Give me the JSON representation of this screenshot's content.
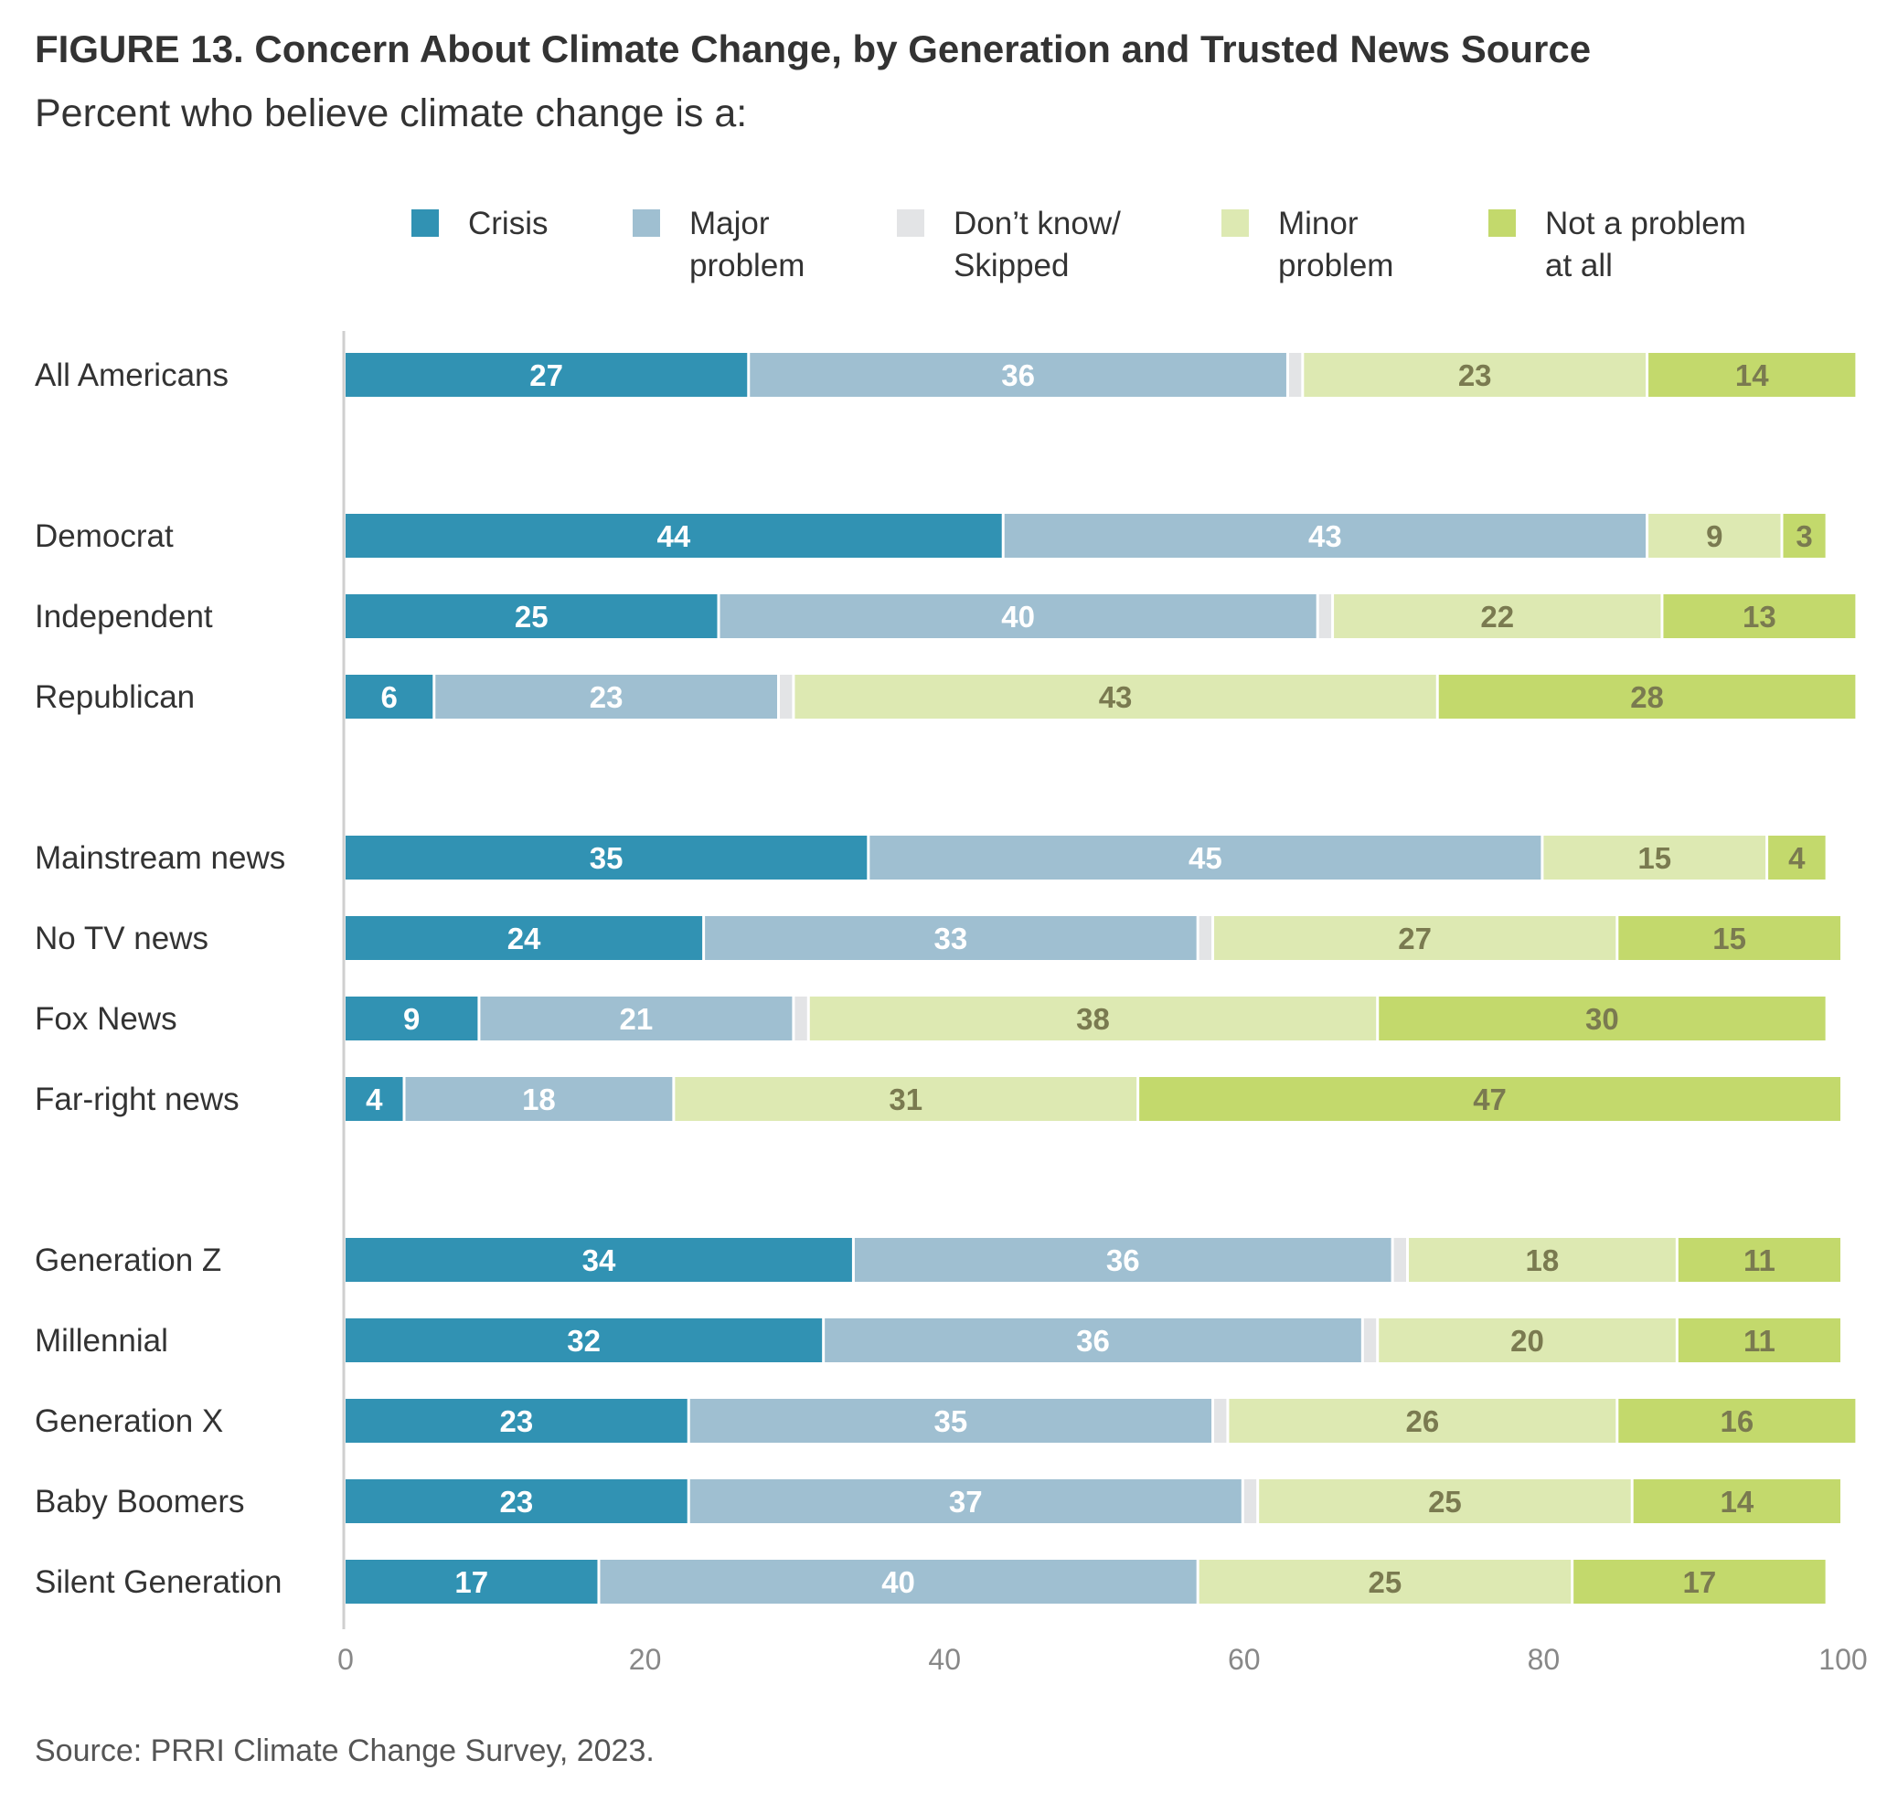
{
  "figure_title": "FIGURE 13.  Concern About Climate Change, by Generation and Trusted News Source",
  "subtitle": "Percent who believe climate change is a:",
  "source": "Source: PRRI Climate Change Survey, 2023.",
  "chart_data": {
    "type": "bar",
    "orientation": "horizontal",
    "stacked": true,
    "title": "FIGURE 13.  Concern About Climate Change, by Generation and Trusted News Source",
    "subtitle": "Percent who believe climate change is a:",
    "xlim": [
      0,
      100
    ],
    "xticks": [
      0,
      20,
      40,
      60,
      80,
      100
    ],
    "grid": false,
    "legend_position": "top",
    "categories": [
      "All Americans",
      "Democrat",
      "Independent",
      "Republican",
      "Mainstream news",
      "No TV news",
      "Fox News",
      "Far-right news",
      "Generation Z",
      "Millennial",
      "Generation X",
      "Baby Boomers",
      "Silent Generation"
    ],
    "groups": [
      [
        0
      ],
      [
        1,
        2,
        3
      ],
      [
        4,
        5,
        6,
        7
      ],
      [
        8,
        9,
        10,
        11,
        12
      ]
    ],
    "series": [
      {
        "name": "Crisis",
        "legend_lines": [
          "Crisis"
        ],
        "color": "#3192b3",
        "label_style": "light",
        "values": [
          27,
          44,
          25,
          6,
          35,
          24,
          9,
          4,
          34,
          32,
          23,
          23,
          17
        ]
      },
      {
        "name": "Major problem",
        "legend_lines": [
          "Major",
          "problem"
        ],
        "color": "#9fbfd1",
        "label_style": "light",
        "values": [
          36,
          43,
          40,
          23,
          45,
          33,
          21,
          18,
          36,
          36,
          35,
          37,
          40
        ]
      },
      {
        "name": "Don’t know/ Skipped",
        "legend_lines": [
          "Don’t know/",
          "Skipped"
        ],
        "color": "#e3e4e6",
        "label_style": "none",
        "values": [
          1,
          0,
          1,
          1,
          0,
          1,
          1,
          0,
          1,
          1,
          1,
          1,
          0
        ]
      },
      {
        "name": "Minor problem",
        "legend_lines": [
          "Minor",
          "problem"
        ],
        "color": "#dde9b2",
        "label_style": "dark",
        "values": [
          23,
          9,
          22,
          43,
          15,
          27,
          38,
          31,
          18,
          20,
          26,
          25,
          25
        ]
      },
      {
        "name": "Not a problem at all",
        "legend_lines": [
          "Not a problem",
          "at all"
        ],
        "color": "#c3d96c",
        "label_style": "dark",
        "values": [
          14,
          3,
          13,
          28,
          4,
          15,
          30,
          47,
          11,
          11,
          16,
          14,
          17
        ]
      }
    ]
  }
}
